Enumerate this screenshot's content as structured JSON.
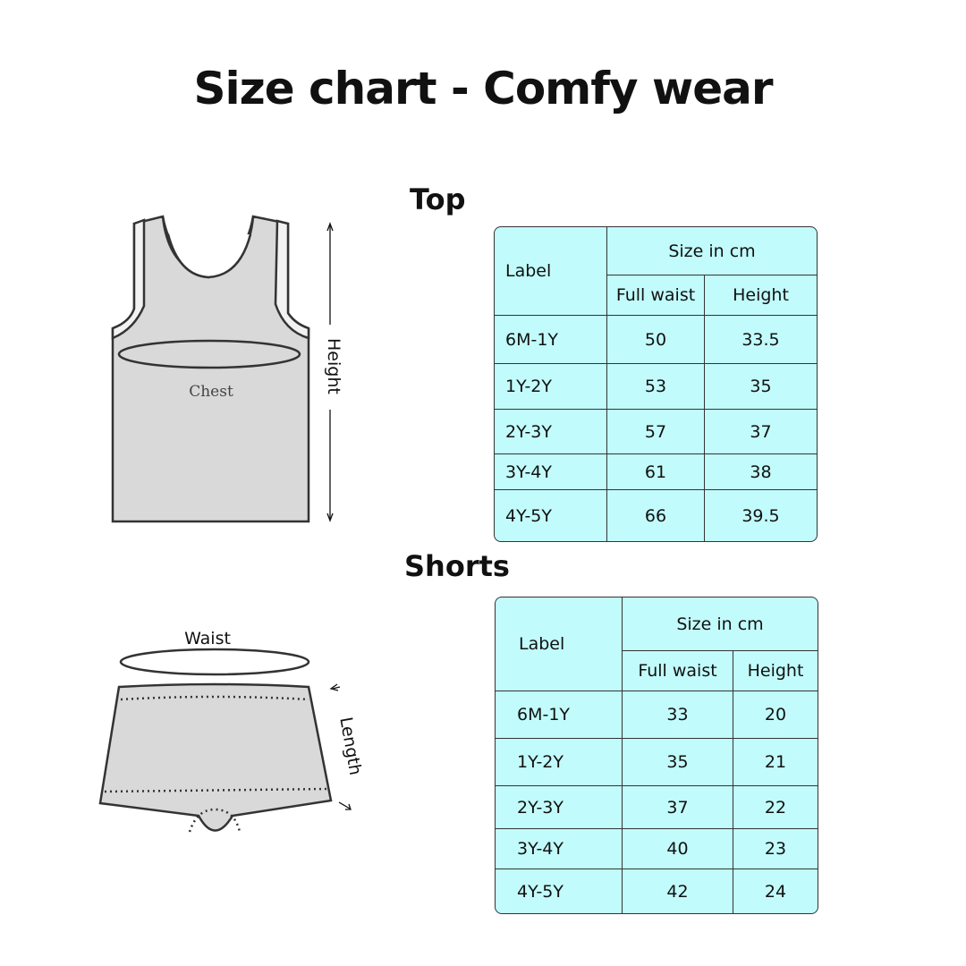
{
  "title": "Size chart - Comfy wear",
  "colors": {
    "table_bg": "#c2fbfb",
    "garment_fill": "#d9d9d9"
  },
  "top": {
    "heading": "Top",
    "illustration": {
      "chest_label": "Chest",
      "height_label": "Height"
    },
    "table": {
      "label_header": "Label",
      "group_header": "Size in cm",
      "columns": [
        "Full waist",
        "Height"
      ],
      "rows": [
        {
          "label": "6M-1Y",
          "full_waist": "50",
          "height": "33.5"
        },
        {
          "label": "1Y-2Y",
          "full_waist": "53",
          "height": "35"
        },
        {
          "label": "2Y-3Y",
          "full_waist": "57",
          "height": "37"
        },
        {
          "label": "3Y-4Y",
          "full_waist": "61",
          "height": "38"
        },
        {
          "label": "4Y-5Y",
          "full_waist": "66",
          "height": "39.5"
        }
      ]
    }
  },
  "shorts": {
    "heading": "Shorts",
    "illustration": {
      "waist_label": "Waist",
      "length_label": "Length"
    },
    "table": {
      "label_header": "Label",
      "group_header": "Size in cm",
      "columns": [
        "Full waist",
        "Height"
      ],
      "rows": [
        {
          "label": "6M-1Y",
          "full_waist": "33",
          "height": "20"
        },
        {
          "label": "1Y-2Y",
          "full_waist": "35",
          "height": "21"
        },
        {
          "label": "2Y-3Y",
          "full_waist": "37",
          "height": "22"
        },
        {
          "label": "3Y-4Y",
          "full_waist": "40",
          "height": "23"
        },
        {
          "label": "4Y-5Y",
          "full_waist": "42",
          "height": "24"
        }
      ]
    }
  }
}
